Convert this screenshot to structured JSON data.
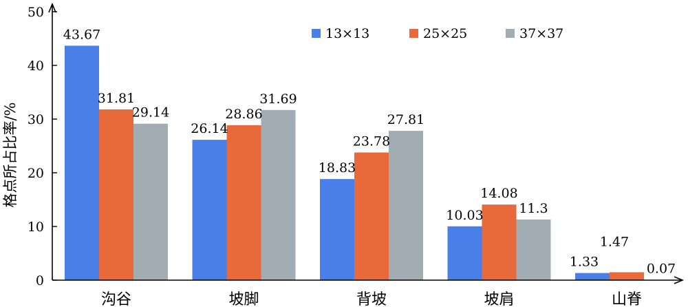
{
  "chart_data": {
    "type": "bar",
    "title": "",
    "xlabel": "",
    "ylabel": "格点所占比率/%",
    "ylim": [
      0,
      50
    ],
    "yticks": [
      "0",
      "10",
      "20",
      "30",
      "40",
      "50"
    ],
    "grid": false,
    "legend_position": "top-right",
    "categories": [
      "沟谷",
      "坡脚",
      "背坡",
      "坡肩",
      "山脊"
    ],
    "series": [
      {
        "name": "13×13",
        "color": "#4a7fe9",
        "values": [
          43.67,
          26.14,
          18.83,
          10.03,
          1.33
        ],
        "labels": [
          "43.67",
          "26.14",
          "18.83",
          "10.03",
          "1.33"
        ]
      },
      {
        "name": "25×25",
        "color": "#e8693a",
        "values": [
          31.81,
          28.86,
          23.78,
          14.08,
          1.47
        ],
        "labels": [
          "31.81",
          "28.86",
          "23.78",
          "14.08",
          "1.47"
        ]
      },
      {
        "name": "37×37",
        "color": "#a2adb3",
        "values": [
          29.14,
          31.69,
          27.81,
          11.3,
          0.07
        ],
        "labels": [
          "29.14",
          "31.69",
          "27.81",
          "11.3",
          "0.07"
        ]
      }
    ]
  }
}
